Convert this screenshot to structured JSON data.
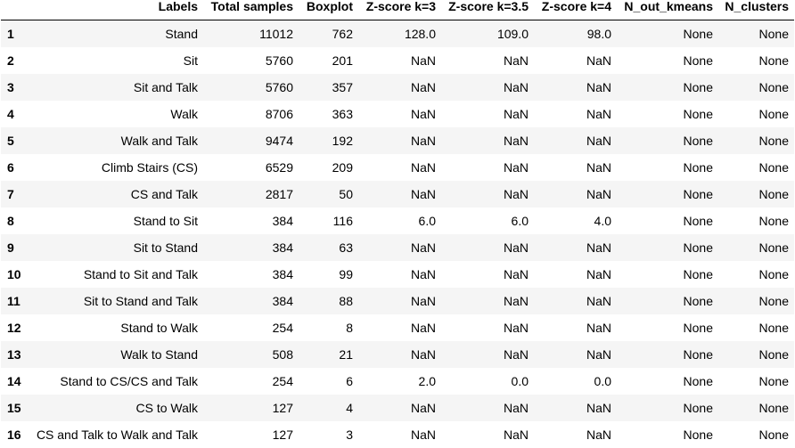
{
  "table": {
    "columns": [
      "",
      "Labels",
      "Total samples",
      "Boxplot",
      "Z-score k=3",
      "Z-score k=3.5",
      "Z-score k=4",
      "N_out_kmeans",
      "N_clusters"
    ],
    "rows": [
      {
        "index": "1",
        "cells": [
          "Stand",
          "11012",
          "762",
          "128.0",
          "109.0",
          "98.0",
          "None",
          "None"
        ]
      },
      {
        "index": "2",
        "cells": [
          "Sit",
          "5760",
          "201",
          "NaN",
          "NaN",
          "NaN",
          "None",
          "None"
        ]
      },
      {
        "index": "3",
        "cells": [
          "Sit and Talk",
          "5760",
          "357",
          "NaN",
          "NaN",
          "NaN",
          "None",
          "None"
        ]
      },
      {
        "index": "4",
        "cells": [
          "Walk",
          "8706",
          "363",
          "NaN",
          "NaN",
          "NaN",
          "None",
          "None"
        ]
      },
      {
        "index": "5",
        "cells": [
          "Walk and Talk",
          "9474",
          "192",
          "NaN",
          "NaN",
          "NaN",
          "None",
          "None"
        ]
      },
      {
        "index": "6",
        "cells": [
          "Climb Stairs (CS)",
          "6529",
          "209",
          "NaN",
          "NaN",
          "NaN",
          "None",
          "None"
        ]
      },
      {
        "index": "7",
        "cells": [
          "CS and Talk",
          "2817",
          "50",
          "NaN",
          "NaN",
          "NaN",
          "None",
          "None"
        ]
      },
      {
        "index": "8",
        "cells": [
          "Stand to Sit",
          "384",
          "116",
          "6.0",
          "6.0",
          "4.0",
          "None",
          "None"
        ]
      },
      {
        "index": "9",
        "cells": [
          "Sit to Stand",
          "384",
          "63",
          "NaN",
          "NaN",
          "NaN",
          "None",
          "None"
        ]
      },
      {
        "index": "10",
        "cells": [
          "Stand to Sit and Talk",
          "384",
          "99",
          "NaN",
          "NaN",
          "NaN",
          "None",
          "None"
        ]
      },
      {
        "index": "11",
        "cells": [
          "Sit to Stand and Talk",
          "384",
          "88",
          "NaN",
          "NaN",
          "NaN",
          "None",
          "None"
        ]
      },
      {
        "index": "12",
        "cells": [
          "Stand to Walk",
          "254",
          "8",
          "NaN",
          "NaN",
          "NaN",
          "None",
          "None"
        ]
      },
      {
        "index": "13",
        "cells": [
          "Walk to Stand",
          "508",
          "21",
          "NaN",
          "NaN",
          "NaN",
          "None",
          "None"
        ]
      },
      {
        "index": "14",
        "cells": [
          "Stand to CS/CS and Talk",
          "254",
          "6",
          "2.0",
          "0.0",
          "0.0",
          "None",
          "None"
        ]
      },
      {
        "index": "15",
        "cells": [
          "CS to Walk",
          "127",
          "4",
          "NaN",
          "NaN",
          "NaN",
          "None",
          "None"
        ]
      },
      {
        "index": "16",
        "cells": [
          "CS and Talk to Walk and Talk",
          "127",
          "3",
          "NaN",
          "NaN",
          "NaN",
          "None",
          "None"
        ]
      }
    ]
  }
}
